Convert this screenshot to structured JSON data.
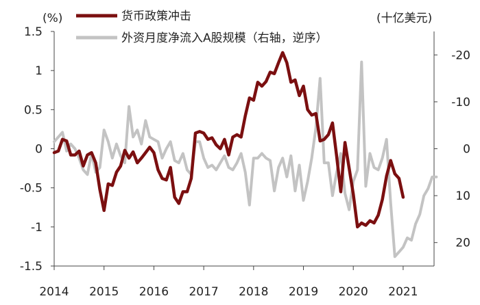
{
  "chart_data": {
    "type": "line",
    "left_unit": "(%)",
    "right_unit": "(十亿美元)",
    "x_ticks": [
      "2014",
      "2015",
      "2016",
      "2017",
      "2018",
      "2019",
      "2020",
      "2021"
    ],
    "x_start": 2014.0,
    "x_step": 0.0833333,
    "ylim_left": [
      -1.5,
      1.5
    ],
    "yticks_left": [
      "1.5",
      "1",
      "0.5",
      "0",
      "-0.5",
      "-1",
      "-1.5"
    ],
    "ytick_values_left": [
      1.5,
      1,
      0.5,
      0,
      -0.5,
      -1,
      -1.5
    ],
    "ylim_right": [
      25,
      -25
    ],
    "yticks_right": [
      "-20",
      "-10",
      "0",
      "10",
      "20"
    ],
    "ytick_values_right": [
      -20,
      -10,
      0,
      10,
      20
    ],
    "grid": false,
    "legend_position": "top",
    "series": [
      {
        "name": "货币政策冲击",
        "axis": "left",
        "color": "#7b0f10",
        "values": [
          -0.05,
          -0.03,
          0.12,
          0.1,
          -0.08,
          -0.08,
          -0.03,
          -0.22,
          -0.08,
          -0.05,
          -0.18,
          -0.52,
          -0.79,
          -0.45,
          -0.47,
          -0.3,
          -0.22,
          -0.02,
          -0.12,
          -0.04,
          -0.18,
          -0.12,
          -0.05,
          0.02,
          -0.05,
          -0.27,
          -0.38,
          -0.4,
          -0.24,
          -0.62,
          -0.7,
          -0.55,
          -0.55,
          -0.38,
          0.2,
          0.22,
          0.2,
          0.12,
          0.14,
          0.05,
          0.0,
          0.12,
          -0.08,
          0.15,
          0.18,
          0.15,
          0.42,
          0.65,
          0.62,
          0.85,
          0.8,
          0.86,
          0.98,
          0.96,
          1.1,
          1.23,
          1.1,
          0.85,
          0.88,
          0.68,
          0.8,
          0.5,
          0.43,
          0.45,
          0.1,
          0.12,
          0.18,
          0.33,
          -0.1,
          -0.55,
          0.08,
          -0.25,
          -0.58,
          -1.0,
          -0.95,
          -0.98,
          -0.92,
          -0.95,
          -0.85,
          -0.65,
          -0.35,
          -0.15,
          -0.32,
          -0.38,
          -0.62
        ]
      },
      {
        "name": "外资月度净流入A股规模（右轴，逆序）",
        "axis": "right",
        "color": "#c3c3c3",
        "values": [
          -1.5,
          -2.5,
          -3.5,
          0.5,
          -1.0,
          0.0,
          2.0,
          4.5,
          5.5,
          1.0,
          5.0,
          4.0,
          -4.0,
          -1.5,
          2.0,
          -1.0,
          1.5,
          3.0,
          -9.0,
          -2.5,
          -4.0,
          -1.0,
          -6.0,
          -2.5,
          -2.0,
          -1.5,
          2.0,
          0.0,
          -1.5,
          2.5,
          3.0,
          1.0,
          4.5,
          5.5,
          -1.5,
          -1.5,
          2.0,
          4.0,
          3.5,
          4.5,
          3.0,
          1.5,
          4.0,
          4.5,
          3.0,
          1.0,
          5.0,
          12.0,
          2.0,
          2.0,
          1.0,
          2.0,
          2.5,
          9.0,
          4.0,
          2.0,
          6.0,
          1.5,
          9.0,
          3.5,
          11.0,
          7.0,
          2.0,
          -4.5,
          -15.0,
          3.0,
          3.0,
          10.0,
          5.0,
          1.0,
          9.5,
          13.0,
          7.0,
          4.5,
          -18.5,
          8.0,
          1.0,
          4.0,
          4.5,
          2.0,
          -2.0,
          11.5,
          23.0,
          22.0,
          21.0,
          19.0,
          19.5,
          16.0,
          14.0,
          10.0,
          8.5,
          6.0,
          6.0
        ]
      }
    ]
  }
}
